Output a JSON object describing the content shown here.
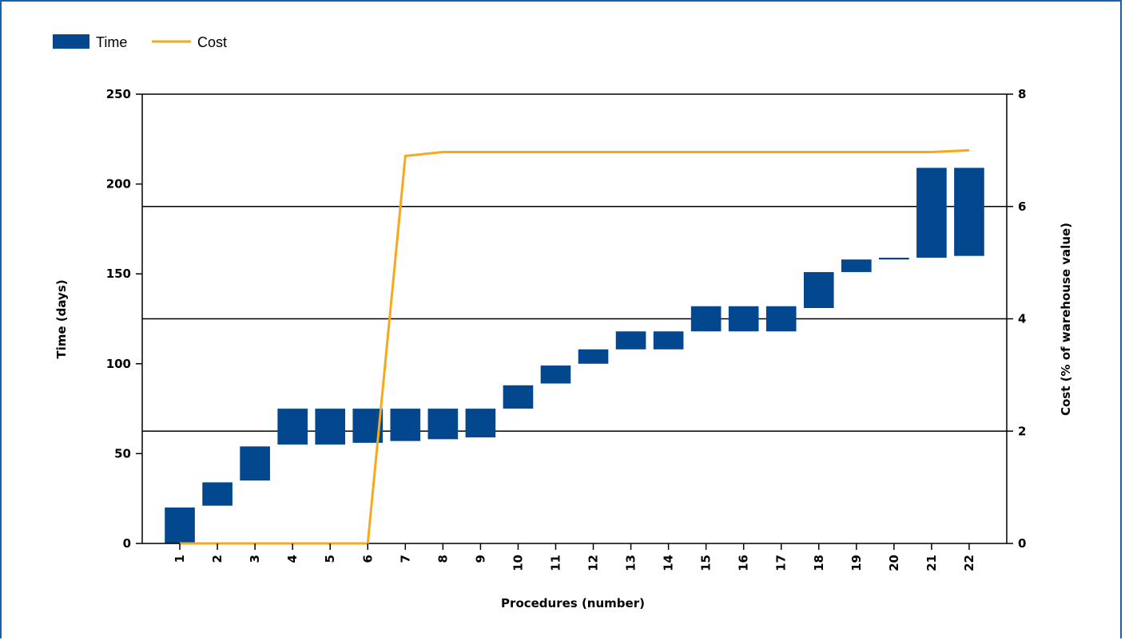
{
  "colors": {
    "time_bar": "#03488e",
    "cost_line": "#f7a81b",
    "grid": "#000000",
    "frame": "#1e5fa8"
  },
  "chart_data": {
    "type": "bar",
    "subtype": "floating-bar (waterfall) with line overlay",
    "legend": {
      "position": "top-left",
      "entries": [
        "Time",
        "Cost"
      ]
    },
    "categories": [
      "1",
      "2",
      "3",
      "4",
      "5",
      "6",
      "7",
      "8",
      "9",
      "10",
      "11",
      "12",
      "13",
      "14",
      "15",
      "16",
      "17",
      "18",
      "19",
      "20",
      "21",
      "22"
    ],
    "series": [
      {
        "name": "Time",
        "type": "floating-bar",
        "axis": "left",
        "ranges": [
          [
            0,
            20
          ],
          [
            21,
            34
          ],
          [
            35,
            54
          ],
          [
            55,
            75
          ],
          [
            55,
            75
          ],
          [
            56,
            75
          ],
          [
            57,
            75
          ],
          [
            58,
            75
          ],
          [
            59,
            75
          ],
          [
            75,
            88
          ],
          [
            89,
            99
          ],
          [
            100,
            108
          ],
          [
            108,
            118
          ],
          [
            108,
            118
          ],
          [
            118,
            132
          ],
          [
            118,
            132
          ],
          [
            118,
            132
          ],
          [
            131,
            151
          ],
          [
            151,
            158
          ],
          [
            158,
            159
          ],
          [
            159,
            209
          ],
          [
            160,
            209
          ]
        ]
      },
      {
        "name": "Cost",
        "type": "line",
        "axis": "right",
        "values": [
          0,
          0,
          0,
          0,
          0,
          0,
          6.9,
          6.97,
          6.97,
          6.97,
          6.97,
          6.97,
          6.97,
          6.97,
          6.97,
          6.97,
          6.97,
          6.97,
          6.97,
          6.97,
          6.97,
          7.0
        ]
      }
    ],
    "xlabel": "Procedures (number)",
    "ylabel": "Time (days)",
    "y2label": "Cost (% of warehouse value)",
    "ylim": [
      0,
      250
    ],
    "y_ticks": [
      "0",
      "50",
      "100",
      "150",
      "200",
      "250"
    ],
    "y2lim": [
      0,
      8
    ],
    "y2_ticks": [
      "0",
      "2",
      "4",
      "6",
      "8"
    ],
    "grid": "horizontal at right-axis ticks"
  }
}
